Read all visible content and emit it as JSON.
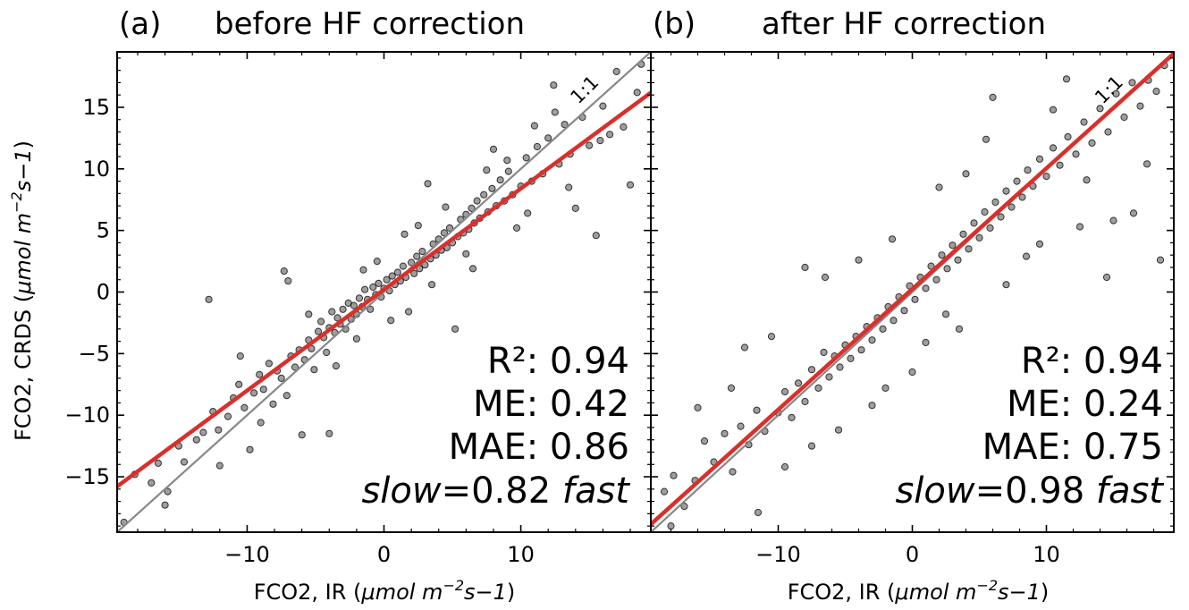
{
  "chart_data": [
    {
      "type": "scatter",
      "panel_label": "(a)",
      "title": "before HF correction",
      "xlabel": {
        "prefix": "FCO2, IR (",
        "unit_a": "μmol m",
        "unit_sup": "−2",
        "unit_b": "s−1",
        "suffix": ")"
      },
      "ylabel": {
        "prefix": "FCO2, CRDS (",
        "unit_a": "μmol m",
        "unit_sup": "−2",
        "unit_b": "s−1",
        "suffix": ")"
      },
      "xlim": [
        -19.5,
        19.5
      ],
      "ylim": [
        -19.5,
        19.5
      ],
      "x_ticks": [
        -10,
        0,
        10
      ],
      "x_tick_labels": [
        "−10",
        "0",
        "10"
      ],
      "y_ticks": [
        -15,
        -10,
        -5,
        0,
        5,
        10,
        15
      ],
      "y_tick_labels": [
        "−15",
        "−10",
        "−5",
        "0",
        "5",
        "10",
        "15"
      ],
      "identity_line": {
        "label": "1:1",
        "slope": 1,
        "intercept": 0,
        "color": "#888888"
      },
      "fit_line": {
        "slope": 0.82,
        "intercept": 0.2,
        "color": "#d9302c"
      },
      "stats": {
        "r2": "R²: 0.94",
        "me": "ME: 0.42",
        "mae": "MAE: 0.86",
        "ratio_pre": "slow",
        "ratio_val": "=0.82 ",
        "ratio_post": "fast"
      },
      "points": [
        [
          -18.2,
          -14.8
        ],
        [
          -17.0,
          -15.5
        ],
        [
          -16.5,
          -13.9
        ],
        [
          -15.8,
          -16.2
        ],
        [
          -15.0,
          -12.5
        ],
        [
          -14.6,
          -13.8
        ],
        [
          -13.7,
          -12.0
        ],
        [
          -13.2,
          -11.4
        ],
        [
          -12.8,
          -0.6
        ],
        [
          -12.5,
          -9.7
        ],
        [
          -12.1,
          -11.2
        ],
        [
          -11.4,
          -10.1
        ],
        [
          -11.0,
          -8.6
        ],
        [
          -10.6,
          -7.5
        ],
        [
          -10.2,
          -9.4
        ],
        [
          -9.8,
          -12.8
        ],
        [
          -9.5,
          -8.2
        ],
        [
          -9.1,
          -6.7
        ],
        [
          -8.8,
          -7.9
        ],
        [
          -8.4,
          -5.8
        ],
        [
          -8.1,
          -9.1
        ],
        [
          -7.8,
          -6.4
        ],
        [
          -7.5,
          -7.0
        ],
        [
          -7.3,
          1.7
        ],
        [
          -7.1,
          -8.4
        ],
        [
          -6.8,
          -5.2
        ],
        [
          -6.5,
          -6.1
        ],
        [
          -6.2,
          -4.7
        ],
        [
          -6.0,
          -11.6
        ],
        [
          -5.8,
          -5.5
        ],
        [
          -5.5,
          -3.9
        ],
        [
          -5.3,
          -4.6
        ],
        [
          -5.1,
          -6.3
        ],
        [
          -4.8,
          -3.2
        ],
        [
          -4.6,
          -2.4
        ],
        [
          -4.4,
          -3.7
        ],
        [
          -4.2,
          -4.9
        ],
        [
          -4.0,
          -2.9
        ],
        [
          -3.8,
          -1.6
        ],
        [
          -3.6,
          -3.3
        ],
        [
          -3.4,
          -2.1
        ],
        [
          -3.2,
          -2.6
        ],
        [
          -3.0,
          -1.4
        ],
        [
          -2.8,
          -3.0
        ],
        [
          -2.6,
          -0.9
        ],
        [
          -2.4,
          -2.2
        ],
        [
          -2.2,
          -1.1
        ],
        [
          -2.0,
          -1.8
        ],
        [
          -1.8,
          -0.5
        ],
        [
          -1.6,
          -1.2
        ],
        [
          -1.4,
          0.2
        ],
        [
          -1.2,
          -0.6
        ],
        [
          -1.0,
          -1.4
        ],
        [
          -0.8,
          0.4
        ],
        [
          -0.6,
          -0.2
        ],
        [
          -0.4,
          0.7
        ],
        [
          -0.2,
          -0.4
        ],
        [
          0.0,
          0.3
        ],
        [
          0.2,
          1.0
        ],
        [
          0.4,
          0.1
        ],
        [
          0.6,
          1.3
        ],
        [
          0.8,
          0.6
        ],
        [
          1.0,
          1.6
        ],
        [
          1.2,
          0.9
        ],
        [
          1.4,
          2.1
        ],
        [
          1.6,
          1.2
        ],
        [
          1.8,
          -1.6
        ],
        [
          2.0,
          2.4
        ],
        [
          2.2,
          1.5
        ],
        [
          2.4,
          2.9
        ],
        [
          2.6,
          1.9
        ],
        [
          2.8,
          3.3
        ],
        [
          3.0,
          2.2
        ],
        [
          3.2,
          8.8
        ],
        [
          3.4,
          2.7
        ],
        [
          3.6,
          3.9
        ],
        [
          3.8,
          3.0
        ],
        [
          4.0,
          4.3
        ],
        [
          4.2,
          3.4
        ],
        [
          4.4,
          4.8
        ],
        [
          4.6,
          3.6
        ],
        [
          4.8,
          5.2
        ],
        [
          5.0,
          4.0
        ],
        [
          5.2,
          -3.0
        ],
        [
          5.4,
          4.5
        ],
        [
          5.6,
          5.9
        ],
        [
          5.8,
          4.8
        ],
        [
          6.0,
          6.3
        ],
        [
          6.2,
          5.1
        ],
        [
          6.4,
          6.8
        ],
        [
          6.6,
          5.6
        ],
        [
          6.8,
          7.4
        ],
        [
          7.0,
          6.0
        ],
        [
          7.3,
          7.9
        ],
        [
          7.6,
          6.5
        ],
        [
          7.9,
          8.4
        ],
        [
          8.2,
          7.0
        ],
        [
          8.5,
          9.1
        ],
        [
          8.8,
          7.4
        ],
        [
          9.1,
          9.8
        ],
        [
          9.4,
          7.9
        ],
        [
          9.7,
          5.2
        ],
        [
          10.0,
          8.6
        ],
        [
          10.4,
          10.9
        ],
        [
          10.8,
          9.0
        ],
        [
          11.2,
          11.8
        ],
        [
          11.6,
          9.6
        ],
        [
          12.0,
          12.5
        ],
        [
          12.4,
          16.8
        ],
        [
          12.8,
          10.4
        ],
        [
          13.2,
          13.6
        ],
        [
          13.6,
          11.2
        ],
        [
          14.0,
          6.8
        ],
        [
          14.5,
          14.2
        ],
        [
          15.0,
          11.9
        ],
        [
          15.5,
          4.6
        ],
        [
          16.0,
          15.1
        ],
        [
          16.5,
          12.8
        ],
        [
          17.0,
          17.9
        ],
        [
          17.5,
          13.4
        ],
        [
          18.0,
          8.7
        ],
        [
          18.5,
          16.2
        ],
        [
          -19.0,
          -18.7
        ],
        [
          -16.0,
          -17.3
        ],
        [
          -12.0,
          -14.1
        ],
        [
          -4.0,
          -11.5
        ],
        [
          -2.0,
          -3.8
        ],
        [
          1.5,
          4.7
        ],
        [
          3.5,
          0.6
        ],
        [
          6.5,
          1.9
        ],
        [
          8.0,
          11.6
        ],
        [
          10.5,
          6.4
        ],
        [
          11.0,
          13.5
        ],
        [
          13.5,
          8.5
        ],
        [
          -7.0,
          0.9
        ],
        [
          -9.0,
          -10.6
        ],
        [
          0.5,
          -2.3
        ],
        [
          2.5,
          5.4
        ],
        [
          -1.5,
          1.8
        ],
        [
          4.5,
          6.9
        ],
        [
          -5.5,
          -1.8
        ],
        [
          12.5,
          14.6
        ],
        [
          15.8,
          12.3
        ],
        [
          18.8,
          18.5
        ],
        [
          -3.5,
          -6.0
        ],
        [
          6.0,
          3.1
        ],
        [
          9.0,
          10.7
        ],
        [
          -10.5,
          -5.2
        ],
        [
          7.5,
          9.9
        ],
        [
          -0.5,
          2.5
        ]
      ]
    },
    {
      "type": "scatter",
      "panel_label": "(b)",
      "title": "after HF correction",
      "xlabel": {
        "prefix": "FCO2, IR (",
        "unit_a": "μmol m",
        "unit_sup": "−2",
        "unit_b": "s−1",
        "suffix": ")"
      },
      "xlim": [
        -19.5,
        19.5
      ],
      "ylim": [
        -19.5,
        19.5
      ],
      "x_ticks": [
        -10,
        0,
        10
      ],
      "x_tick_labels": [
        "−10",
        "0",
        "10"
      ],
      "y_ticks": [
        -15,
        -10,
        -5,
        0,
        5,
        10,
        15
      ],
      "identity_line": {
        "label": "1:1",
        "slope": 1,
        "intercept": 0,
        "color": "#888888"
      },
      "fit_line": {
        "slope": 0.98,
        "intercept": 0.25,
        "color": "#d9302c"
      },
      "stats": {
        "r2": "R²: 0.94",
        "me": "ME: 0.24",
        "mae": "MAE: 0.75",
        "ratio_pre": "slow",
        "ratio_val": "=0.98 ",
        "ratio_post": "fast"
      },
      "points": [
        [
          -18.5,
          -16.2
        ],
        [
          -17.8,
          -14.9
        ],
        [
          -17.0,
          -17.4
        ],
        [
          -16.2,
          -15.3
        ],
        [
          -15.5,
          -12.1
        ],
        [
          -14.8,
          -13.8
        ],
        [
          -14.0,
          -11.5
        ],
        [
          -13.4,
          -14.6
        ],
        [
          -12.8,
          -10.9
        ],
        [
          -12.2,
          -12.4
        ],
        [
          -11.6,
          -9.6
        ],
        [
          -11.0,
          -11.3
        ],
        [
          -10.5,
          -3.6
        ],
        [
          -10.0,
          -9.8
        ],
        [
          -9.5,
          -8.1
        ],
        [
          -9.0,
          -10.2
        ],
        [
          -8.5,
          -7.4
        ],
        [
          -8.0,
          -8.9
        ],
        [
          -7.5,
          -6.3
        ],
        [
          -7.0,
          -7.8
        ],
        [
          -6.6,
          -4.9
        ],
        [
          -6.2,
          -6.9
        ],
        [
          -5.8,
          -5.2
        ],
        [
          -5.4,
          -6.1
        ],
        [
          -5.0,
          -4.3
        ],
        [
          -4.6,
          -5.4
        ],
        [
          -4.2,
          -3.6
        ],
        [
          -3.8,
          -4.7
        ],
        [
          -3.4,
          -2.8
        ],
        [
          -3.0,
          -3.9
        ],
        [
          -2.6,
          -2.1
        ],
        [
          -2.2,
          -3.0
        ],
        [
          -1.8,
          -1.2
        ],
        [
          -1.4,
          -2.3
        ],
        [
          -1.0,
          -0.4
        ],
        [
          -0.6,
          -1.5
        ],
        [
          -0.2,
          0.5
        ],
        [
          0.2,
          -0.6
        ],
        [
          0.6,
          1.2
        ],
        [
          1.0,
          0.3
        ],
        [
          1.4,
          2.1
        ],
        [
          1.8,
          1.0
        ],
        [
          2.2,
          3.0
        ],
        [
          2.6,
          1.9
        ],
        [
          3.0,
          3.8
        ],
        [
          3.4,
          2.6
        ],
        [
          3.8,
          4.7
        ],
        [
          4.2,
          3.5
        ],
        [
          4.6,
          5.6
        ],
        [
          5.0,
          4.4
        ],
        [
          5.4,
          6.5
        ],
        [
          5.8,
          5.2
        ],
        [
          6.2,
          7.3
        ],
        [
          6.6,
          6.1
        ],
        [
          7.0,
          8.2
        ],
        [
          7.4,
          6.9
        ],
        [
          7.8,
          9.0
        ],
        [
          8.2,
          7.7
        ],
        [
          8.6,
          9.9
        ],
        [
          9.0,
          8.6
        ],
        [
          9.5,
          10.8
        ],
        [
          10.0,
          9.4
        ],
        [
          10.5,
          11.7
        ],
        [
          11.0,
          10.3
        ],
        [
          11.6,
          12.6
        ],
        [
          12.2,
          11.2
        ],
        [
          12.8,
          13.8
        ],
        [
          13.4,
          12.1
        ],
        [
          14.0,
          14.9
        ],
        [
          14.6,
          13.0
        ],
        [
          15.2,
          16.1
        ],
        [
          15.8,
          14.2
        ],
        [
          16.4,
          17.0
        ],
        [
          17.0,
          15.1
        ],
        [
          17.6,
          17.2
        ],
        [
          18.2,
          16.3
        ],
        [
          18.8,
          18.4
        ],
        [
          -8.0,
          2.0
        ],
        [
          -6.5,
          1.2
        ],
        [
          -13.5,
          -7.8
        ],
        [
          -16.0,
          -9.4
        ],
        [
          -11.5,
          -17.9
        ],
        [
          -4.0,
          2.6
        ],
        [
          -2.0,
          -7.8
        ],
        [
          0.0,
          -6.5
        ],
        [
          2.0,
          8.5
        ],
        [
          3.5,
          -3.0
        ],
        [
          5.5,
          12.4
        ],
        [
          7.0,
          0.6
        ],
        [
          9.5,
          3.9
        ],
        [
          10.5,
          14.8
        ],
        [
          12.5,
          5.3
        ],
        [
          14.5,
          1.2
        ],
        [
          16.5,
          6.4
        ],
        [
          -5.5,
          -11.2
        ],
        [
          -9.5,
          -14.2
        ],
        [
          6.0,
          15.8
        ],
        [
          8.5,
          2.9
        ],
        [
          11.5,
          17.3
        ],
        [
          13.0,
          9.1
        ],
        [
          15.0,
          5.8
        ],
        [
          17.5,
          10.4
        ],
        [
          18.5,
          2.6
        ],
        [
          -18.0,
          -19.0
        ],
        [
          -12.5,
          -4.5
        ],
        [
          -7.5,
          -12.5
        ],
        [
          -1.5,
          4.3
        ],
        [
          1.0,
          -4.1
        ],
        [
          4.0,
          9.6
        ],
        [
          -3.0,
          -9.2
        ],
        [
          2.5,
          -1.8
        ]
      ]
    }
  ]
}
